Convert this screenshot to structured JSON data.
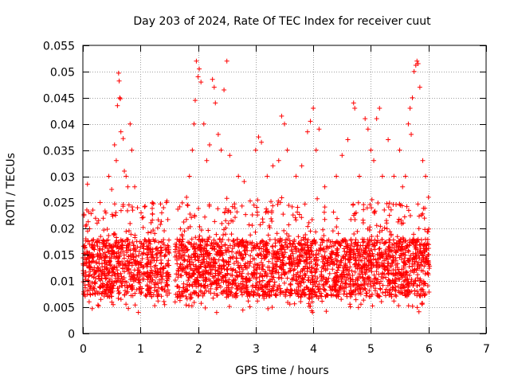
{
  "chart_data": {
    "type": "scatter",
    "title": "Day 203 of 2024, Rate Of TEC Index for receiver cuut",
    "xlabel": "GPS time / hours",
    "ylabel": "ROTI / TECUs",
    "xlim": [
      0,
      7
    ],
    "ylim": [
      0,
      0.055
    ],
    "xticks": [
      0,
      1,
      2,
      3,
      4,
      5,
      6,
      7
    ],
    "xtick_labels": [
      "0",
      "1",
      "2",
      "3",
      "4",
      "5",
      "6",
      "7"
    ],
    "yticks": [
      0,
      0.005,
      0.01,
      0.015,
      0.02,
      0.025,
      0.03,
      0.035,
      0.04,
      0.045,
      0.05,
      0.055
    ],
    "ytick_labels": [
      "0",
      "0.005",
      "0.01",
      "0.015",
      "0.02",
      "0.025",
      "0.03",
      "0.035",
      "0.04",
      "0.045",
      "0.05",
      "0.055"
    ],
    "grid": true,
    "marker": "plus",
    "series_color": "#ff0000",
    "x_coverage": [
      [
        0.0,
        1.5
      ],
      [
        1.6,
        6.02
      ]
    ],
    "baseline_band": [
      0.005,
      0.02
    ],
    "series": [
      {
        "name": "ROTI",
        "points": [
          [
            0.02,
            0.0225
          ],
          [
            0.05,
            0.0205
          ],
          [
            0.08,
            0.0285
          ],
          [
            0.1,
            0.0232
          ],
          [
            0.22,
            0.022
          ],
          [
            0.3,
            0.025
          ],
          [
            0.4,
            0.023
          ],
          [
            0.45,
            0.03
          ],
          [
            0.5,
            0.0275
          ],
          [
            0.55,
            0.036
          ],
          [
            0.58,
            0.033
          ],
          [
            0.6,
            0.0435
          ],
          [
            0.62,
            0.0497
          ],
          [
            0.63,
            0.0482
          ],
          [
            0.64,
            0.045
          ],
          [
            0.65,
            0.0448
          ],
          [
            0.66,
            0.0385
          ],
          [
            0.7,
            0.0372
          ],
          [
            0.72,
            0.031
          ],
          [
            0.75,
            0.03
          ],
          [
            0.78,
            0.028
          ],
          [
            0.82,
            0.04
          ],
          [
            0.85,
            0.035
          ],
          [
            0.9,
            0.028
          ],
          [
            1.4,
            0.024
          ],
          [
            1.45,
            0.025
          ],
          [
            1.8,
            0.026
          ],
          [
            1.85,
            0.03
          ],
          [
            1.9,
            0.035
          ],
          [
            1.93,
            0.04
          ],
          [
            1.95,
            0.0445
          ],
          [
            1.97,
            0.052
          ],
          [
            2.0,
            0.049
          ],
          [
            2.02,
            0.0505
          ],
          [
            2.05,
            0.048
          ],
          [
            2.1,
            0.04
          ],
          [
            2.15,
            0.033
          ],
          [
            2.2,
            0.036
          ],
          [
            2.25,
            0.0485
          ],
          [
            2.28,
            0.047
          ],
          [
            2.3,
            0.044
          ],
          [
            2.35,
            0.038
          ],
          [
            2.4,
            0.035
          ],
          [
            2.45,
            0.0465
          ],
          [
            2.5,
            0.052
          ],
          [
            2.55,
            0.034
          ],
          [
            2.7,
            0.03
          ],
          [
            2.8,
            0.029
          ],
          [
            3.0,
            0.035
          ],
          [
            3.05,
            0.0375
          ],
          [
            3.1,
            0.0365
          ],
          [
            3.2,
            0.03
          ],
          [
            3.3,
            0.032
          ],
          [
            3.4,
            0.033
          ],
          [
            3.45,
            0.0415
          ],
          [
            3.5,
            0.04
          ],
          [
            3.55,
            0.035
          ],
          [
            3.7,
            0.03
          ],
          [
            3.8,
            0.032
          ],
          [
            3.9,
            0.0385
          ],
          [
            3.95,
            0.0405
          ],
          [
            4.0,
            0.043
          ],
          [
            4.05,
            0.035
          ],
          [
            4.1,
            0.039
          ],
          [
            4.2,
            0.028
          ],
          [
            4.4,
            0.03
          ],
          [
            4.5,
            0.034
          ],
          [
            4.6,
            0.037
          ],
          [
            4.7,
            0.044
          ],
          [
            4.72,
            0.043
          ],
          [
            4.8,
            0.03
          ],
          [
            4.9,
            0.041
          ],
          [
            4.95,
            0.039
          ],
          [
            5.0,
            0.035
          ],
          [
            5.05,
            0.033
          ],
          [
            5.1,
            0.041
          ],
          [
            5.15,
            0.043
          ],
          [
            5.2,
            0.03
          ],
          [
            5.3,
            0.037
          ],
          [
            5.4,
            0.03
          ],
          [
            5.5,
            0.035
          ],
          [
            5.55,
            0.028
          ],
          [
            5.6,
            0.03
          ],
          [
            5.65,
            0.04
          ],
          [
            5.68,
            0.043
          ],
          [
            5.7,
            0.038
          ],
          [
            5.72,
            0.045
          ],
          [
            5.75,
            0.05
          ],
          [
            5.78,
            0.0512
          ],
          [
            5.8,
            0.052
          ],
          [
            5.82,
            0.0515
          ],
          [
            5.85,
            0.047
          ],
          [
            5.9,
            0.033
          ],
          [
            5.95,
            0.03
          ],
          [
            6.0,
            0.026
          ]
        ]
      }
    ]
  }
}
